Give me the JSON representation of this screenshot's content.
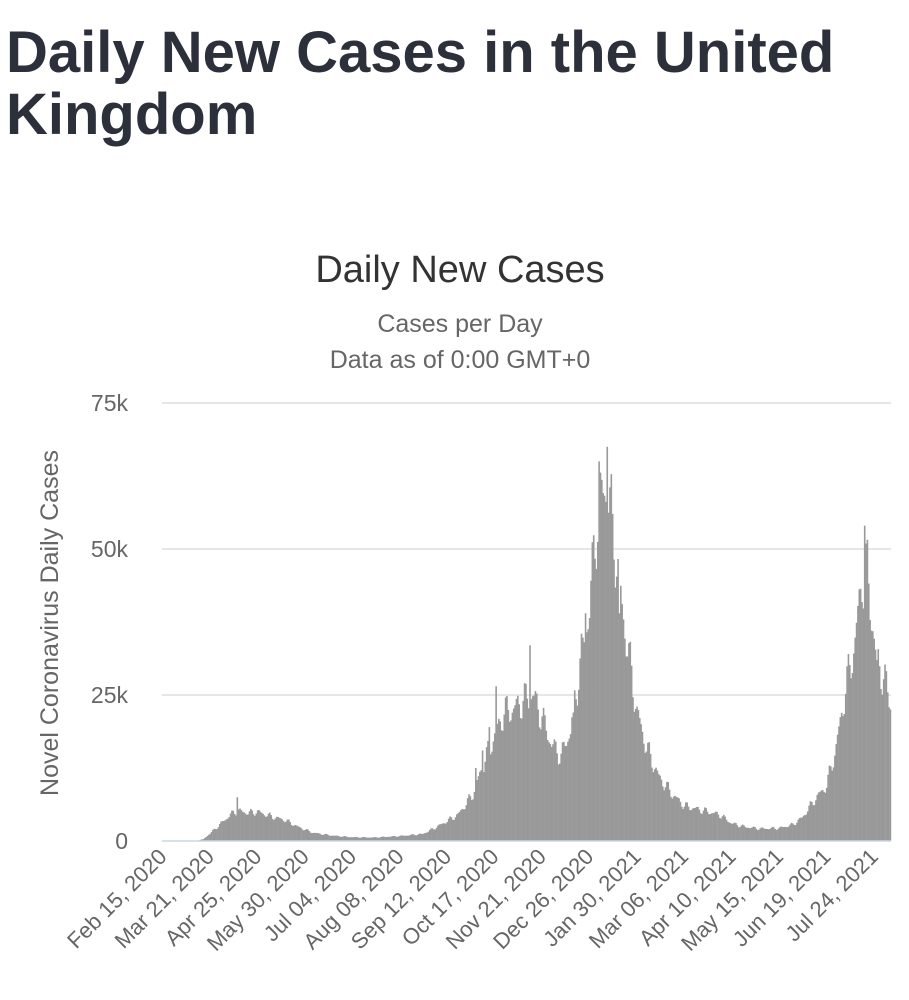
{
  "page": {
    "title": "Daily New Cases in the United Kingdom"
  },
  "chart_data": {
    "type": "bar",
    "title": "Daily New Cases",
    "subtitle": "Cases per Day",
    "subtitle2": "Data as of 0:00 GMT+0",
    "ylabel": "Novel Coronavirus Daily Cases",
    "xlabel": "",
    "ylim": [
      0,
      75000
    ],
    "yticks": [
      0,
      25000,
      50000,
      75000
    ],
    "ytick_labels": [
      "0",
      "25k",
      "50k",
      "75k"
    ],
    "xtick_labels": [
      "Feb 15, 2020",
      "Mar 21, 2020",
      "Apr 25, 2020",
      "May 30, 2020",
      "Jul 04, 2020",
      "Aug 08, 2020",
      "Sep 12, 2020",
      "Oct 17, 2020",
      "Nov 21, 2020",
      "Dec 26, 2020",
      "Jan 30, 2021",
      "Mar 06, 2021",
      "Apr 10, 2021",
      "May 15, 2021",
      "Jun 19, 2021",
      "Jul 24, 2021"
    ],
    "grid": true,
    "bar_color": "#999999",
    "grid_color": "#e6e6e6",
    "axis_color": "#ccd6eb",
    "x_start": "2020-02-15",
    "x_end": "2021-08-05",
    "profile": [
      [
        "2020-02-15",
        0
      ],
      [
        "2020-03-10",
        0
      ],
      [
        "2020-03-16",
        300
      ],
      [
        "2020-03-22",
        1500
      ],
      [
        "2020-03-29",
        3000
      ],
      [
        "2020-04-05",
        4500
      ],
      [
        "2020-04-10",
        5200
      ],
      [
        "2020-04-18",
        4800
      ],
      [
        "2020-04-25",
        5000
      ],
      [
        "2020-05-05",
        4200
      ],
      [
        "2020-05-15",
        3600
      ],
      [
        "2020-05-25",
        2400
      ],
      [
        "2020-06-05",
        1400
      ],
      [
        "2020-06-20",
        900
      ],
      [
        "2020-07-04",
        650
      ],
      [
        "2020-07-20",
        600
      ],
      [
        "2020-08-08",
        850
      ],
      [
        "2020-08-25",
        1200
      ],
      [
        "2020-09-05",
        2500
      ],
      [
        "2020-09-20",
        4500
      ],
      [
        "2020-10-01",
        8000
      ],
      [
        "2020-10-10",
        14000
      ],
      [
        "2020-10-17",
        18000
      ],
      [
        "2020-10-24",
        22000
      ],
      [
        "2020-10-31",
        22500
      ],
      [
        "2020-11-07",
        24000
      ],
      [
        "2020-11-14",
        25000
      ],
      [
        "2020-11-21",
        21000
      ],
      [
        "2020-11-28",
        16500
      ],
      [
        "2020-12-05",
        14500
      ],
      [
        "2020-12-12",
        19000
      ],
      [
        "2020-12-19",
        30000
      ],
      [
        "2020-12-26",
        40000
      ],
      [
        "2020-12-31",
        54000
      ],
      [
        "2021-01-04",
        59000
      ],
      [
        "2021-01-08",
        61000
      ],
      [
        "2021-01-14",
        50000
      ],
      [
        "2021-01-20",
        38000
      ],
      [
        "2021-01-30",
        22000
      ],
      [
        "2021-02-06",
        16000
      ],
      [
        "2021-02-15",
        11000
      ],
      [
        "2021-02-25",
        8000
      ],
      [
        "2021-03-06",
        6000
      ],
      [
        "2021-03-20",
        5200
      ],
      [
        "2021-04-01",
        4500
      ],
      [
        "2021-04-10",
        3000
      ],
      [
        "2021-04-20",
        2400
      ],
      [
        "2021-05-01",
        2100
      ],
      [
        "2021-05-15",
        2200
      ],
      [
        "2021-05-25",
        2800
      ],
      [
        "2021-06-01",
        4000
      ],
      [
        "2021-06-10",
        7000
      ],
      [
        "2021-06-19",
        9500
      ],
      [
        "2021-06-26",
        16000
      ],
      [
        "2021-07-03",
        26000
      ],
      [
        "2021-07-10",
        34000
      ],
      [
        "2021-07-15",
        45000
      ],
      [
        "2021-07-19",
        46000
      ],
      [
        "2021-07-25",
        32000
      ],
      [
        "2021-08-01",
        27000
      ],
      [
        "2021-08-05",
        24000
      ]
    ],
    "spikes": [
      [
        "2020-04-10",
        7500
      ],
      [
        "2020-10-03",
        12500
      ],
      [
        "2020-10-08",
        15500
      ],
      [
        "2020-10-13",
        19500
      ],
      [
        "2020-10-18",
        26500
      ],
      [
        "2020-11-12",
        33500
      ],
      [
        "2020-12-14",
        22000
      ],
      [
        "2020-12-20",
        35500
      ],
      [
        "2020-12-23",
        39000
      ],
      [
        "2021-01-02",
        65000
      ],
      [
        "2021-01-08",
        67500
      ],
      [
        "2021-01-12",
        56000
      ],
      [
        "2021-01-17",
        39000
      ],
      [
        "2021-07-17",
        54000
      ],
      [
        "2021-07-26",
        31000
      ]
    ]
  }
}
